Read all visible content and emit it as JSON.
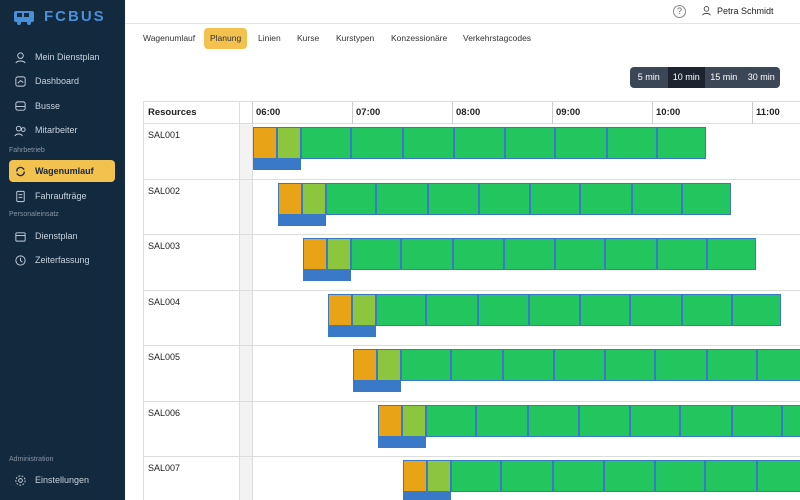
{
  "app": {
    "logo_text": "FCBUS"
  },
  "sidebar": {
    "items": [
      {
        "label": "Mein Dienstplan",
        "icon": "user-icon"
      },
      {
        "label": "Dashboard",
        "icon": "dashboard-icon"
      },
      {
        "label": "Busse",
        "icon": "bus-icon"
      },
      {
        "label": "Mitarbeiter",
        "icon": "users-icon"
      },
      {
        "label": "Wagenumlauf",
        "icon": "rotate-icon"
      },
      {
        "label": "Fahraufträge",
        "icon": "document-icon"
      },
      {
        "label": "Dienstplan",
        "icon": "calendar-icon"
      },
      {
        "label": "Zeiterfassung",
        "icon": "clock-icon"
      },
      {
        "label": "Einstellungen",
        "icon": "gear-icon"
      }
    ],
    "sections": {
      "fahrbetrieb": "Fahrbetrieb",
      "personaleinsatz": "Personaleinsatz",
      "administration": "Administration"
    }
  },
  "topbar": {
    "user_name": "Petra Schmidt",
    "help": "?"
  },
  "tabs": [
    "Wagenumlauf",
    "Planung",
    "Linien",
    "Kurse",
    "Kurstypen",
    "Konzessionäre",
    "Verkehrstagcodes"
  ],
  "active_tab": "Planung",
  "zoom": {
    "options": [
      "5 min",
      "10 min",
      "15 min",
      "30 min"
    ],
    "selected": "10 min"
  },
  "schedule": {
    "resources_header": "Resources",
    "hours": [
      "06:00",
      "07:00",
      "08:00",
      "09:00",
      "10:00",
      "11:00"
    ],
    "rows": [
      "SAL001",
      "SAL002",
      "SAL003",
      "SAL004",
      "SAL005",
      "SAL006",
      "SAL007"
    ]
  },
  "colors": {
    "sidebar": "#13293d",
    "accent": "#f2c14e",
    "trip": "#22c55e",
    "depot": "#e8a317",
    "deadhead": "#8cc63f",
    "link": "#3a78c8"
  }
}
